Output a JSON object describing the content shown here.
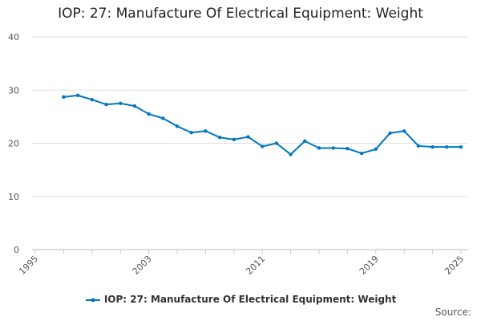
{
  "chart_data": {
    "type": "line",
    "title": "IOP: 27: Manufacture Of Electrical Equipment: Weight",
    "xlabel": "",
    "ylabel": "",
    "xlim": [
      1995,
      2025
    ],
    "ylim": [
      0,
      40
    ],
    "x_ticks": [
      "1995",
      "2003",
      "2011",
      "2019",
      "2025"
    ],
    "y_ticks": [
      "0",
      "10",
      "20",
      "30",
      "40"
    ],
    "grid": true,
    "legend_position": "bottom",
    "series": [
      {
        "name": "IOP: 27: Manufacture Of Electrical Equipment: Weight",
        "color": "#0077c0",
        "x": [
          1997,
          1998,
          1999,
          2000,
          2001,
          2002,
          2003,
          2004,
          2005,
          2006,
          2007,
          2008,
          2009,
          2010,
          2011,
          2012,
          2013,
          2014,
          2015,
          2016,
          2017,
          2018,
          2019,
          2020,
          2021,
          2022,
          2023,
          2024,
          2025
        ],
        "values": [
          28.7,
          29.0,
          28.2,
          27.3,
          27.5,
          27.0,
          25.5,
          24.7,
          23.2,
          22.0,
          22.3,
          21.1,
          20.7,
          21.2,
          19.4,
          20.0,
          17.9,
          20.4,
          19.1,
          19.1,
          19.0,
          18.1,
          18.9,
          21.9,
          22.3,
          19.5,
          19.3,
          19.3,
          19.3
        ]
      }
    ],
    "source_label": "Source:"
  }
}
